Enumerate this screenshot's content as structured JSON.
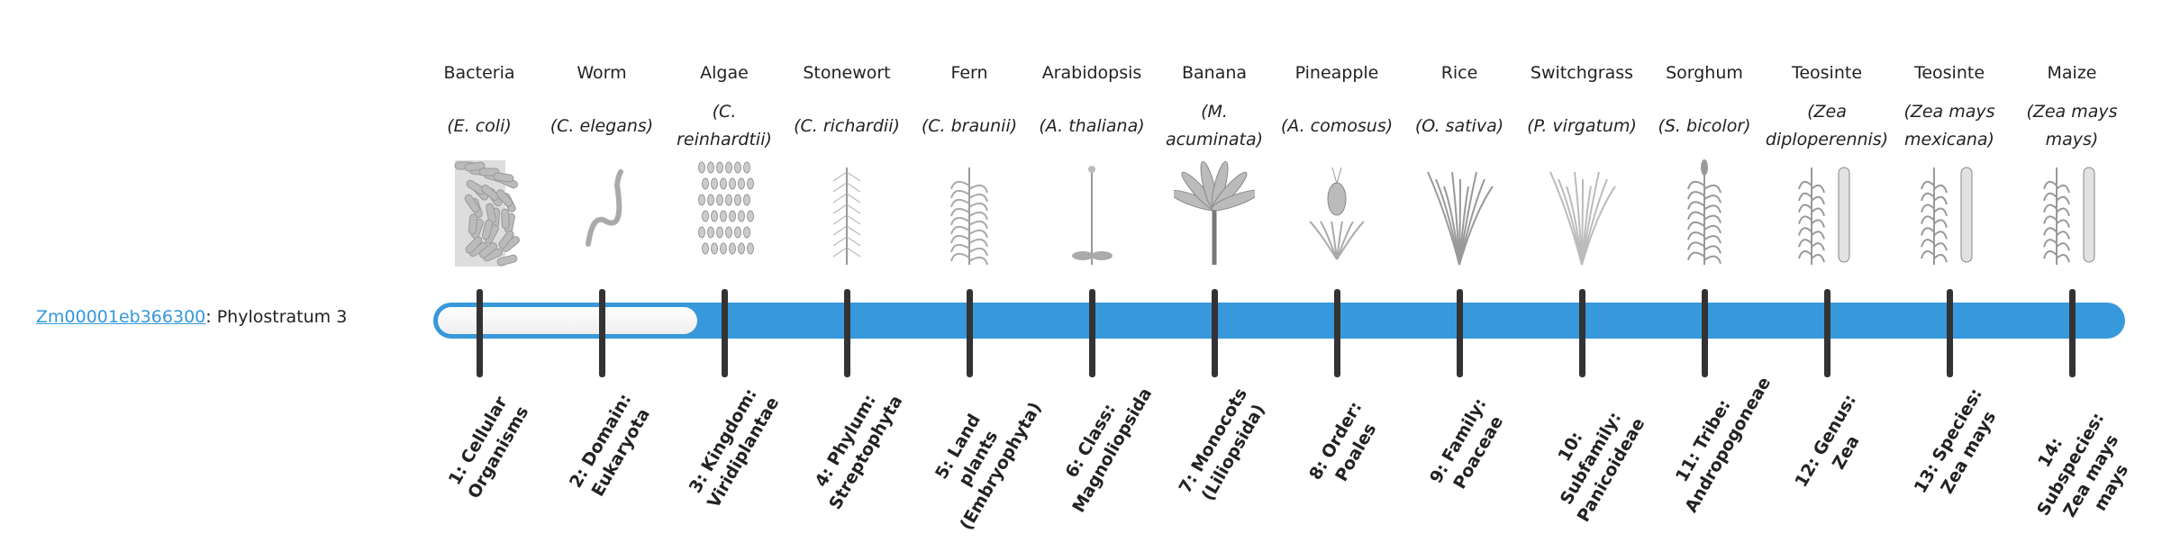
{
  "gene": {
    "id": "Zm00001eb366300",
    "separator": ": ",
    "stratum_text": "Phylostratum 3"
  },
  "phylostratum": 3,
  "colors": {
    "bar": "#3798db",
    "link": "#3498db",
    "tick": "#333333"
  },
  "organisms": [
    {
      "common": "Bacteria",
      "scientific": "(E. coli)",
      "icon": "bacteria-icon",
      "stratum": "1: Cellular Organisms"
    },
    {
      "common": "Worm",
      "scientific": "(C. elegans)",
      "icon": "worm-icon",
      "stratum": "2: Domain: Eukaryota"
    },
    {
      "common": "Algae",
      "scientific": "(C. reinhardtii)",
      "icon": "algae-icon",
      "stratum": "3: Kingdom: Viridiplantae"
    },
    {
      "common": "Stonewort",
      "scientific": "(C. richardii)",
      "icon": "stonewort-icon",
      "stratum": "4: Phylum: Streptophyta"
    },
    {
      "common": "Fern",
      "scientific": "(C. braunii)",
      "icon": "fern-icon",
      "stratum": "5: Land plants (Embryophyta)"
    },
    {
      "common": "Arabidopsis",
      "scientific": "(A. thaliana)",
      "icon": "arabidopsis-icon",
      "stratum": "6: Class: Magnoliopsida"
    },
    {
      "common": "Banana",
      "scientific": "(M. acuminata)",
      "icon": "banana-icon",
      "stratum": "7: Monocots (Liliopsida)"
    },
    {
      "common": "Pineapple",
      "scientific": "(A. comosus)",
      "icon": "pineapple-icon",
      "stratum": "8: Order: Poales"
    },
    {
      "common": "Rice",
      "scientific": "(O. sativa)",
      "icon": "rice-icon",
      "stratum": "9: Family: Poaceae"
    },
    {
      "common": "Switchgrass",
      "scientific": "(P. virgatum)",
      "icon": "switchgrass-icon",
      "stratum": "10: Subfamily: Panicoideae"
    },
    {
      "common": "Sorghum",
      "scientific": "(S. bicolor)",
      "icon": "sorghum-icon",
      "stratum": "11: Tribe: Andropogoneae"
    },
    {
      "common": "Teosinte",
      "scientific": "(Zea diploperennis)",
      "icon": "teosinte-icon",
      "stratum": "12: Genus: Zea"
    },
    {
      "common": "Teosinte",
      "scientific": "(Zea mays mexicana)",
      "icon": "teosinte-mexicana-icon",
      "stratum": "13: Species: Zea mays"
    },
    {
      "common": "Maize",
      "scientific": "(Zea mays mays)",
      "icon": "maize-icon",
      "stratum": "14: Subspecies: Zea mays mays"
    }
  ]
}
